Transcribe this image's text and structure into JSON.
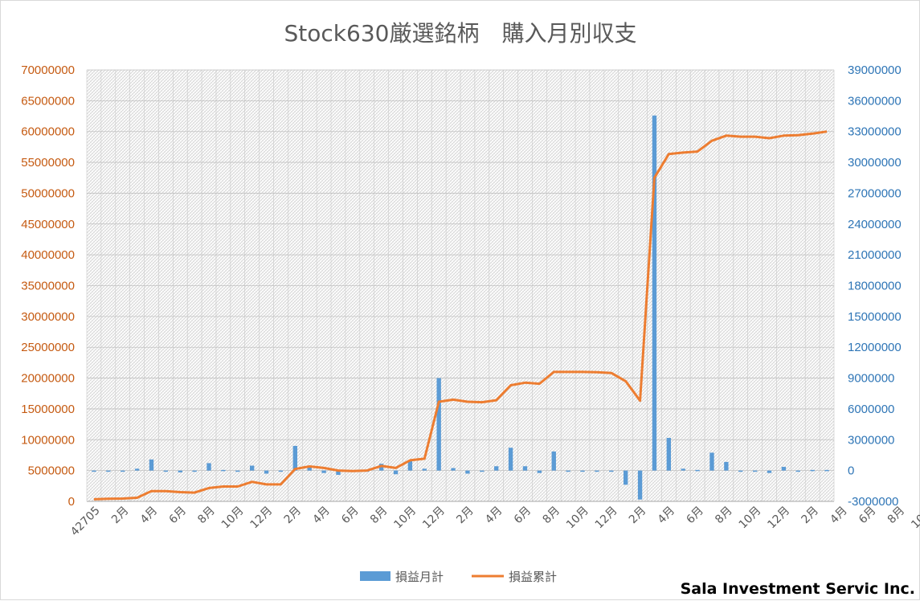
{
  "chart_data": {
    "type": "bar+line",
    "title": "Stock630厳選銘柄　購入月別収支",
    "credit": "Sala Investment Servic Inc.",
    "left_axis": {
      "min": 0,
      "max": 70000000,
      "step": 5000000,
      "ticks": [
        "0",
        "5000000",
        "10000000",
        "15000000",
        "20000000",
        "25000000",
        "30000000",
        "35000000",
        "40000000",
        "45000000",
        "50000000",
        "55000000",
        "60000000",
        "65000000",
        "70000000"
      ]
    },
    "right_axis": {
      "min": -3000000,
      "max": 39000000,
      "step": 3000000,
      "ticks": [
        "-3000000",
        "0",
        "3000000",
        "6000000",
        "9000000",
        "12000000",
        "15000000",
        "18000000",
        "21000000",
        "24000000",
        "27000000",
        "30000000",
        "33000000",
        "36000000",
        "39000000"
      ]
    },
    "x_tick_labels": [
      "42705",
      "2月",
      "4月",
      "6月",
      "8月",
      "10月",
      "12月",
      "2月",
      "4月",
      "6月",
      "8月",
      "10月",
      "12月",
      "2月",
      "4月",
      "6月",
      "8月",
      "10月",
      "12月",
      "2月",
      "4月",
      "6月",
      "8月",
      "10月",
      "12月",
      "2月",
      "4月",
      "6月",
      "8月",
      "10月",
      "12月",
      "2月"
    ],
    "grid": true,
    "legend_position": "bottom",
    "series": [
      {
        "name": "損益月計",
        "type": "bar",
        "axis": "left",
        "color": "#5b9bd5",
        "values": [
          5000000,
          5000000,
          4900000,
          5300000,
          6800000,
          4900000,
          4700000,
          4800000,
          6200000,
          5100000,
          4900000,
          5800000,
          4500000,
          4900000,
          9000000,
          5600000,
          4600000,
          4300000,
          5000000,
          5000000,
          6100000,
          4400000,
          6600000,
          5300000,
          20000000,
          5400000,
          4500000,
          4800000,
          5700000,
          8700000,
          5700000,
          4600000,
          8100000,
          5000000,
          5000000,
          5000000,
          4800000,
          2700000,
          300000,
          62600000,
          10300000,
          5300000,
          5100000,
          7900000,
          6400000,
          4800000,
          4900000,
          4600000,
          5600000,
          5000000,
          5100000,
          5100000
        ]
      },
      {
        "name": "損益累計",
        "type": "line",
        "axis": "right",
        "color": "#ed7d31",
        "values": [
          -2800000,
          -2750000,
          -2730000,
          -2650000,
          -2000000,
          -2000000,
          -2100000,
          -2150000,
          -1700000,
          -1550000,
          -1550000,
          -1100000,
          -1350000,
          -1350000,
          150000,
          400000,
          250000,
          0,
          -50000,
          0,
          450000,
          250000,
          1000000,
          1150000,
          6700000,
          6900000,
          6700000,
          6650000,
          6850000,
          8300000,
          8550000,
          8450000,
          9600000,
          9600000,
          9600000,
          9580000,
          9500000,
          8700000,
          6800000,
          28500000,
          30800000,
          30950000,
          31050000,
          32100000,
          32600000,
          32500000,
          32500000,
          32350000,
          32600000,
          32650000,
          32800000,
          33000000
        ]
      }
    ]
  }
}
